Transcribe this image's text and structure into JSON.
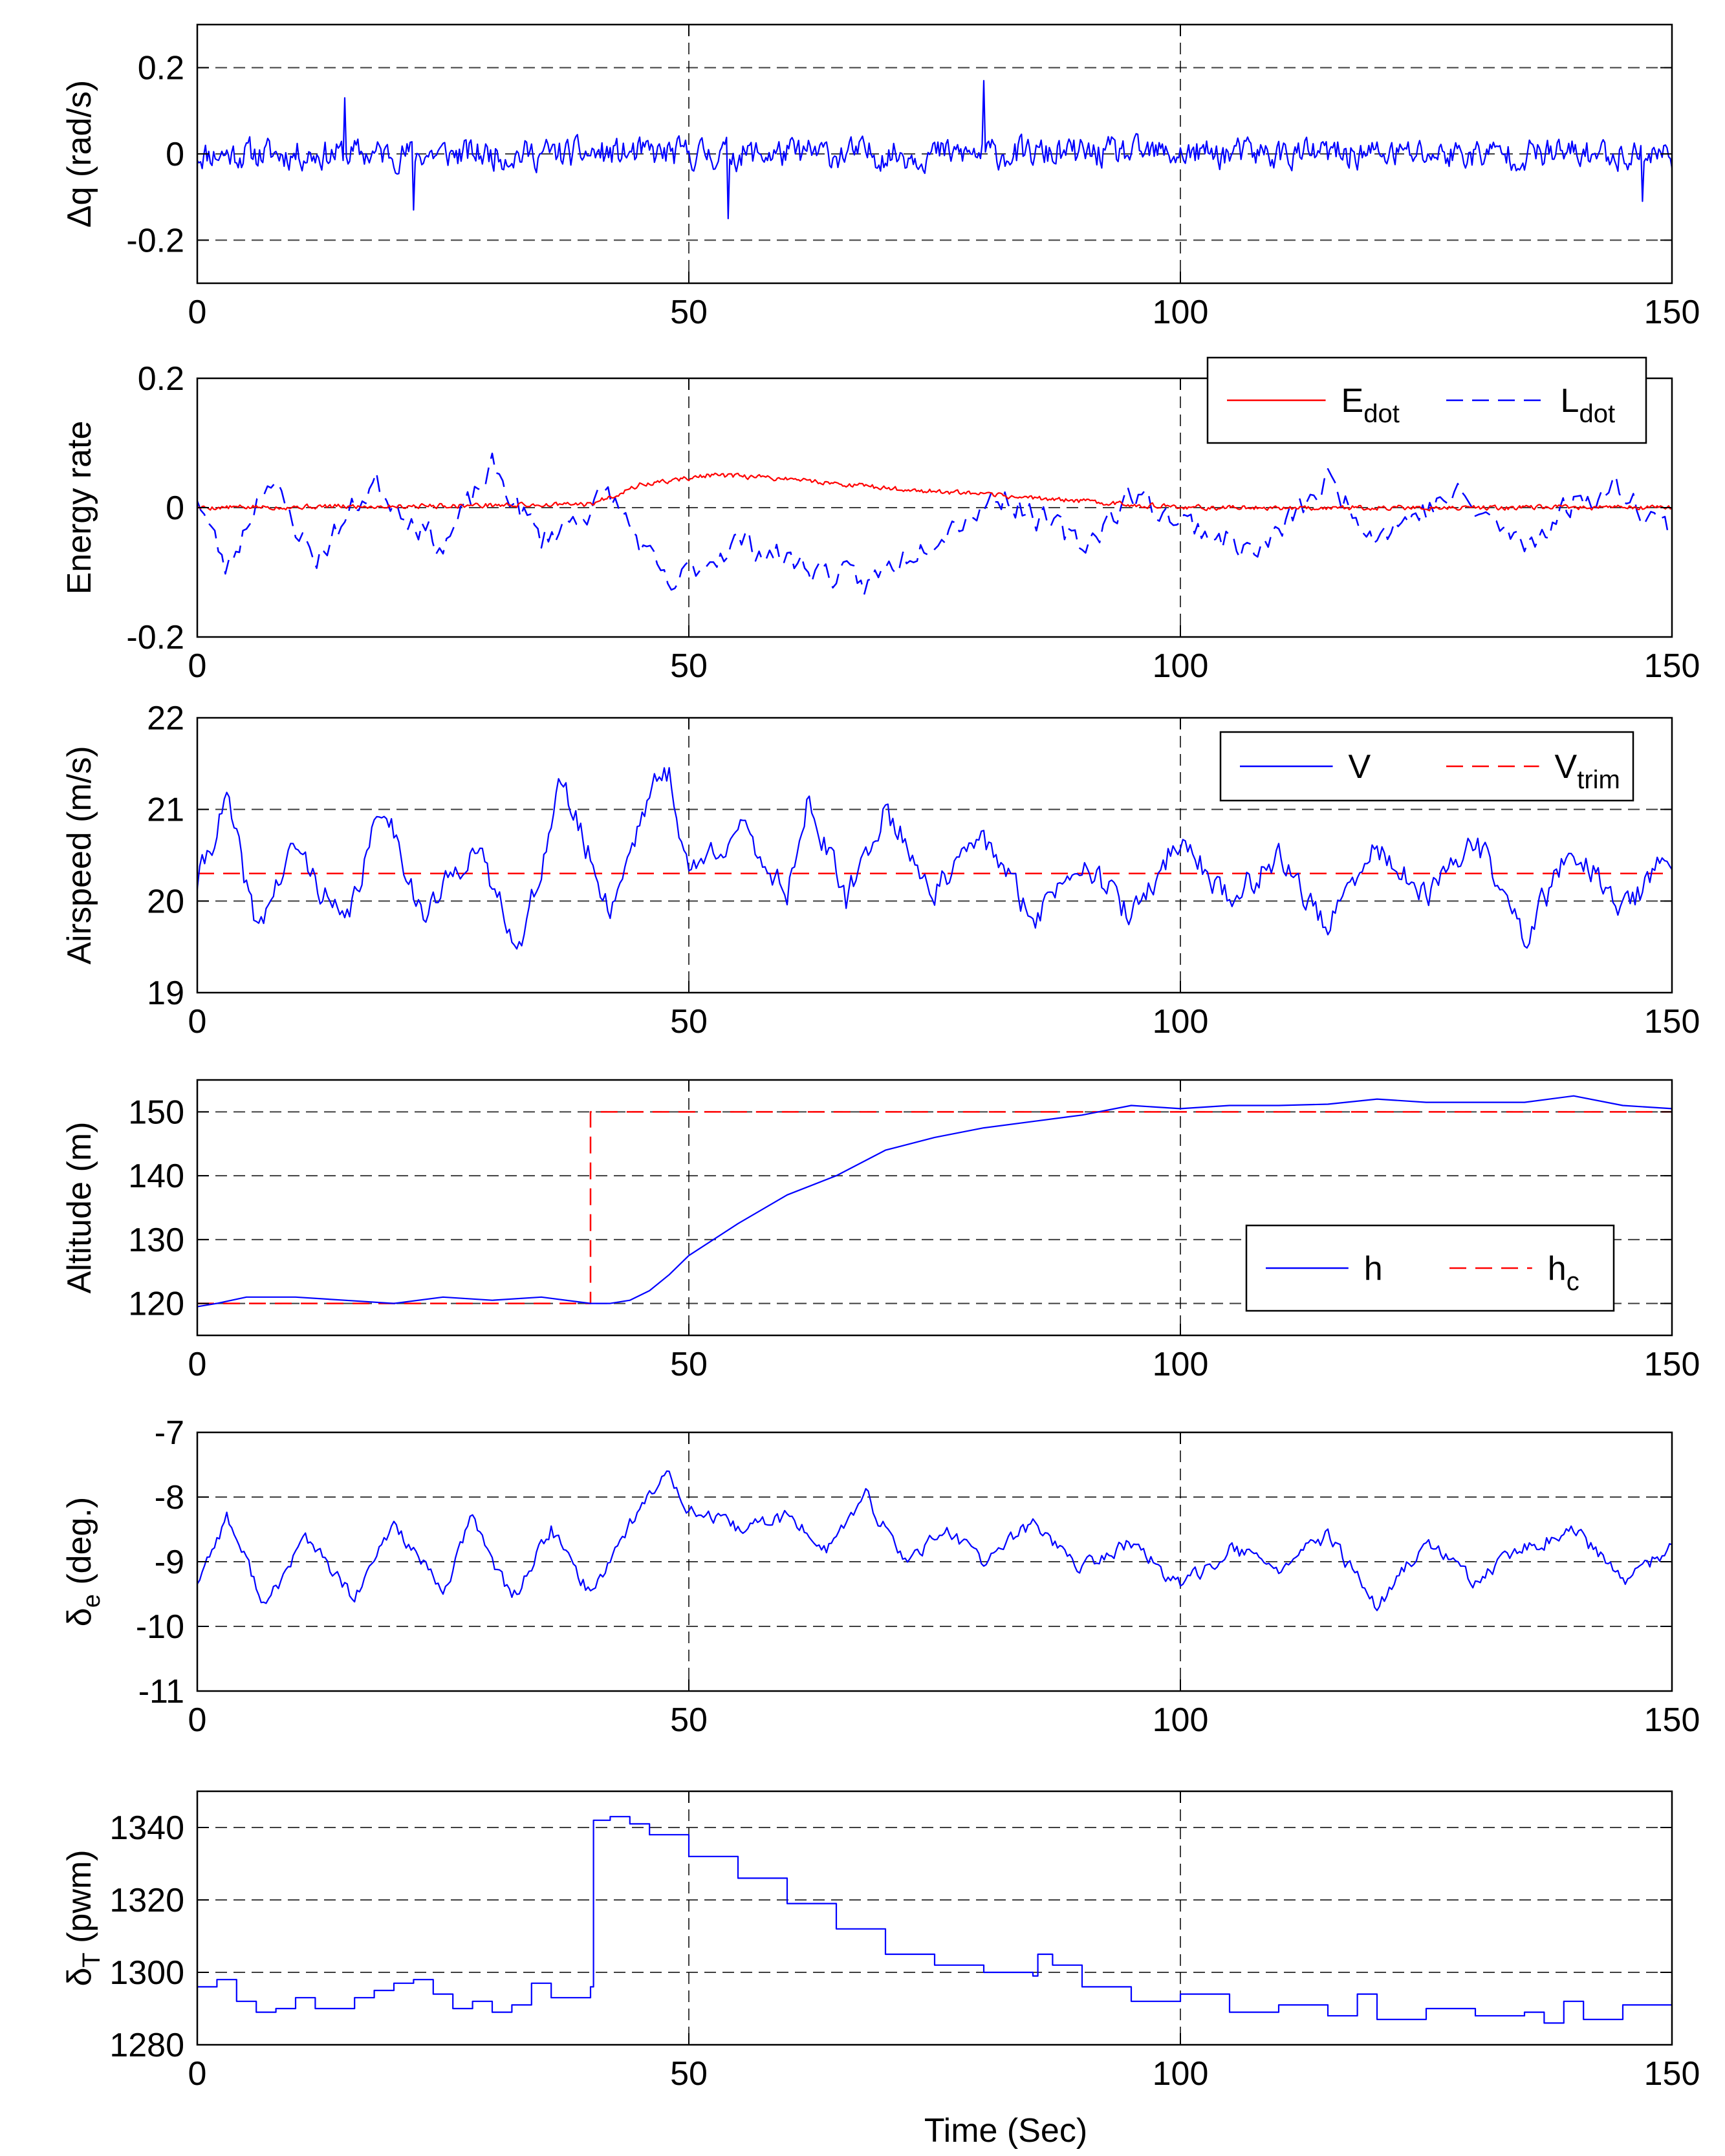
{
  "figure": {
    "xlabel": "Time (Sec)"
  },
  "colors": {
    "blue": "#0000ff",
    "red": "#ff0000",
    "grid": "#000000",
    "axis": "#000000"
  },
  "chart_data": [
    {
      "id": "dq",
      "type": "line",
      "ylabel": {
        "main": "Δq (rad/s)",
        "sub": ""
      },
      "xlim": [
        0,
        150
      ],
      "ylim": [
        -0.3,
        0.3
      ],
      "xticks": [
        0,
        50,
        100,
        150
      ],
      "xtick_labels": [
        "0",
        "50",
        "100",
        "150"
      ],
      "yticks": [
        0.2,
        0,
        -0.2
      ],
      "ytick_labels": [
        "0.2",
        "0",
        "-0.2"
      ],
      "grid": true,
      "series": [
        {
          "name": "Δq",
          "color": "#0000ff",
          "style": "solid",
          "kind": "noise",
          "x": [
            0,
            150
          ],
          "y": [
            0,
            0
          ],
          "noise_amp": 0.055,
          "samples": 900,
          "seed": 11,
          "peaks": [
            [
              15,
              0.13
            ],
            [
              22,
              -0.13
            ],
            [
              80,
              0.17
            ],
            [
              54,
              -0.15
            ],
            [
              147,
              -0.11
            ]
          ]
        }
      ]
    },
    {
      "id": "energy",
      "type": "line",
      "ylabel": {
        "main": "Energy rate",
        "sub": ""
      },
      "xlim": [
        0,
        150
      ],
      "ylim": [
        -0.2,
        0.2
      ],
      "xticks": [
        0,
        50,
        100,
        150
      ],
      "xtick_labels": [
        "0",
        "50",
        "100",
        "150"
      ],
      "yticks": [
        0.2,
        0,
        -0.2
      ],
      "ytick_labels": [
        "0.2",
        "0",
        "-0.2"
      ],
      "grid": true,
      "legend": {
        "position": "top-right",
        "entries": [
          {
            "main": "E",
            "sub": "dot",
            "color": "#ff0000",
            "style": "solid"
          },
          {
            "main": "L",
            "sub": "dot",
            "color": "#0000ff",
            "style": "dashed"
          }
        ]
      },
      "series": [
        {
          "name": "L_dot",
          "color": "#0000ff",
          "style": "dashed",
          "kind": "noise",
          "x": [
            0,
            3,
            7,
            12,
            18,
            25,
            30,
            35,
            42,
            48,
            50,
            55,
            60,
            68,
            75,
            82,
            90,
            95,
            100,
            108,
            115,
            120,
            128,
            135,
            140,
            145,
            150
          ],
          "y": [
            0.02,
            -0.1,
            0.05,
            -0.08,
            0.04,
            -0.06,
            0.06,
            -0.05,
            0.02,
            -0.13,
            -0.1,
            -0.05,
            -0.08,
            -0.12,
            -0.04,
            0.02,
            -0.06,
            0.02,
            -0.02,
            -0.07,
            0.04,
            -0.04,
            0.02,
            -0.06,
            0.01,
            0.03,
            -0.04
          ],
          "noise_amp": 0.035,
          "samples": 420,
          "seed": 23
        },
        {
          "name": "E_dot",
          "color": "#ff0000",
          "style": "solid",
          "kind": "noise",
          "x": [
            0,
            40,
            45,
            52,
            60,
            70,
            80,
            90,
            100,
            150
          ],
          "y": [
            0,
            0.005,
            0.035,
            0.05,
            0.045,
            0.03,
            0.02,
            0.01,
            0,
            0
          ],
          "noise_amp": 0.006,
          "samples": 900,
          "seed": 5
        }
      ]
    },
    {
      "id": "airspeed",
      "type": "line",
      "ylabel": {
        "main": "Airspeed (m/s)",
        "sub": ""
      },
      "xlim": [
        0,
        150
      ],
      "ylim": [
        19,
        22
      ],
      "xticks": [
        0,
        50,
        100,
        150
      ],
      "xtick_labels": [
        "0",
        "50",
        "100",
        "150"
      ],
      "yticks": [
        22,
        21,
        20,
        19
      ],
      "ytick_labels": [
        "22",
        "21",
        "20",
        "19"
      ],
      "grid": true,
      "legend": {
        "position": "top-right",
        "entries": [
          {
            "main": "V",
            "sub": "",
            "color": "#0000ff",
            "style": "solid"
          },
          {
            "main": "V",
            "sub": "trim",
            "color": "#ff0000",
            "style": "dashed"
          }
        ]
      },
      "series": [
        {
          "name": "V_trim",
          "color": "#ff0000",
          "style": "dashed",
          "kind": "line",
          "x": [
            0,
            150
          ],
          "y": [
            20.3,
            20.3
          ]
        },
        {
          "name": "V",
          "color": "#0000ff",
          "style": "solid",
          "kind": "noise",
          "x": [
            0,
            3,
            6,
            10,
            15,
            19,
            23,
            28,
            33,
            37,
            42,
            46,
            48,
            50,
            55,
            60,
            62,
            66,
            70,
            75,
            80,
            85,
            90,
            95,
            100,
            105,
            110,
            115,
            120,
            125,
            130,
            135,
            140,
            145,
            150
          ],
          "y": [
            20.2,
            21.1,
            19.7,
            20.6,
            19.7,
            21.1,
            19.8,
            20.6,
            19.5,
            21.3,
            19.9,
            21.2,
            21.4,
            20.3,
            20.8,
            20.1,
            21.1,
            20.0,
            21.0,
            20.1,
            20.7,
            19.8,
            20.5,
            19.8,
            20.7,
            20.0,
            20.5,
            19.7,
            20.6,
            20.0,
            20.7,
            19.6,
            20.6,
            19.9,
            20.5
          ],
          "noise_amp": 0.25,
          "samples": 600,
          "seed": 41
        }
      ]
    },
    {
      "id": "altitude",
      "type": "line",
      "ylabel": {
        "main": "Altitude (m)",
        "sub": ""
      },
      "xlim": [
        0,
        150
      ],
      "ylim": [
        115,
        155
      ],
      "xticks": [
        0,
        50,
        100,
        150
      ],
      "xtick_labels": [
        "0",
        "50",
        "100",
        "150"
      ],
      "yticks": [
        150,
        140,
        130,
        120
      ],
      "ytick_labels": [
        "150",
        "140",
        "130",
        "120"
      ],
      "grid": true,
      "legend": {
        "position": "center-right",
        "entries": [
          {
            "main": "h",
            "sub": "",
            "color": "#0000ff",
            "style": "solid"
          },
          {
            "main": "h",
            "sub": "c",
            "color": "#ff0000",
            "style": "dashed"
          }
        ]
      },
      "series": [
        {
          "name": "h_c",
          "color": "#ff0000",
          "style": "dashed",
          "kind": "line",
          "x": [
            0,
            40,
            40,
            150
          ],
          "y": [
            120,
            120,
            150,
            150
          ]
        },
        {
          "name": "h",
          "color": "#0000ff",
          "style": "solid",
          "kind": "line",
          "x": [
            0,
            2,
            5,
            10,
            15,
            20,
            25,
            30,
            35,
            40,
            42,
            44,
            46,
            48,
            50,
            55,
            60,
            65,
            70,
            75,
            80,
            85,
            90,
            95,
            100,
            105,
            110,
            115,
            120,
            125,
            130,
            135,
            140,
            145,
            150
          ],
          "y": [
            119.5,
            120,
            121,
            121,
            120.5,
            120,
            121,
            120.5,
            121,
            120,
            120,
            120.5,
            122,
            124.5,
            127.5,
            132.5,
            137,
            140,
            144,
            146,
            147.5,
            148.5,
            149.5,
            151,
            150.5,
            151,
            151,
            151.2,
            152,
            151.5,
            151.5,
            151.5,
            152.5,
            151,
            150.5
          ]
        }
      ]
    },
    {
      "id": "de",
      "type": "line",
      "ylabel": {
        "main": "δ",
        "sub": "e",
        "tail": " (deg.)"
      },
      "xlim": [
        0,
        150
      ],
      "ylim": [
        -11,
        -7
      ],
      "xticks": [
        0,
        50,
        100,
        150
      ],
      "xtick_labels": [
        "0",
        "50",
        "100",
        "150"
      ],
      "yticks": [
        -7,
        -8,
        -9,
        -10,
        -11
      ],
      "ytick_labels": [
        "-7",
        "-8",
        "-9",
        "-10",
        "-11"
      ],
      "grid": true,
      "series": [
        {
          "name": "δe",
          "color": "#0000ff",
          "style": "solid",
          "kind": "noise",
          "x": [
            0,
            3,
            7,
            11,
            16,
            20,
            25,
            28,
            32,
            36,
            40,
            44,
            48,
            50,
            55,
            60,
            64,
            68,
            72,
            76,
            80,
            85,
            90,
            95,
            100,
            105,
            110,
            115,
            120,
            125,
            130,
            135,
            140,
            145,
            150
          ],
          "y": [
            -9.3,
            -8.3,
            -9.7,
            -8.6,
            -9.6,
            -8.4,
            -9.5,
            -8.3,
            -9.6,
            -8.5,
            -9.5,
            -8.4,
            -7.6,
            -8.2,
            -8.5,
            -8.3,
            -8.8,
            -8.0,
            -9.0,
            -8.5,
            -9.0,
            -8.4,
            -9.1,
            -8.7,
            -9.4,
            -8.8,
            -9.1,
            -8.6,
            -9.7,
            -8.7,
            -9.3,
            -8.8,
            -8.5,
            -9.3,
            -8.8
          ],
          "noise_amp": 0.18,
          "samples": 600,
          "seed": 77
        }
      ]
    },
    {
      "id": "dt",
      "type": "line",
      "ylabel": {
        "main": "δ",
        "sub": "T",
        "tail": " (pwm)"
      },
      "xlim": [
        0,
        150
      ],
      "ylim": [
        1280,
        1350
      ],
      "xticks": [
        0,
        50,
        100,
        150
      ],
      "xtick_labels": [
        "0",
        "50",
        "100",
        "150"
      ],
      "yticks": [
        1340,
        1320,
        1300,
        1280
      ],
      "ytick_labels": [
        "1340",
        "1320",
        "1300",
        "1280"
      ],
      "grid": true,
      "series": [
        {
          "name": "δT",
          "color": "#0000ff",
          "style": "step",
          "kind": "line",
          "x": [
            0,
            2,
            4,
            6,
            8,
            10,
            12,
            14,
            16,
            18,
            20,
            22,
            24,
            26,
            28,
            30,
            32,
            34,
            36,
            38,
            40,
            40.3,
            42,
            44,
            46,
            50,
            55,
            60,
            65,
            70,
            75,
            80,
            85,
            85.5,
            87,
            90,
            95,
            100,
            105,
            110,
            115,
            118,
            120,
            125,
            130,
            135,
            137,
            139,
            141,
            145,
            150
          ],
          "y": [
            1296,
            1298,
            1292,
            1289,
            1290,
            1293,
            1290,
            1290,
            1293,
            1295,
            1297,
            1298,
            1294,
            1290,
            1292,
            1289,
            1291,
            1297,
            1293,
            1293,
            1296,
            1342,
            1343,
            1341,
            1338,
            1332,
            1326,
            1319,
            1312,
            1305,
            1302,
            1300,
            1299,
            1305,
            1302,
            1296,
            1292,
            1294,
            1289,
            1291,
            1288,
            1294,
            1287,
            1290,
            1288,
            1289,
            1286,
            1292,
            1287,
            1291,
            1294
          ]
        }
      ]
    }
  ]
}
